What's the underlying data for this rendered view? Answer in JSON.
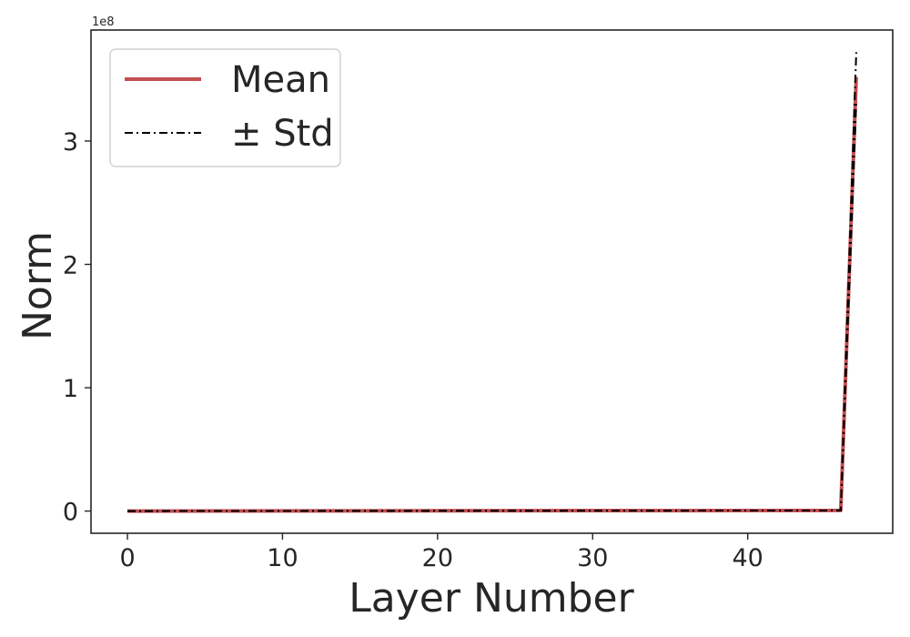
{
  "chart_data": {
    "type": "line",
    "xlabel": "Layer Number",
    "ylabel": "Norm",
    "y_offset_text": "1e8",
    "y_scale": 100000000,
    "xlim": [
      -2.35,
      49.35
    ],
    "ylim": [
      -0.18,
      3.9
    ],
    "xticks": [
      0,
      10,
      20,
      30,
      40
    ],
    "yticks": [
      0,
      1,
      2,
      3
    ],
    "grid": false,
    "legend_position": "upper-left",
    "series": [
      {
        "name": "Mean",
        "style": "solid",
        "color": "#c44e52",
        "x": [
          0,
          46,
          47
        ],
        "y": [
          0,
          0.005,
          3.52
        ]
      },
      {
        "name": "± Std",
        "style": "dashdot",
        "color": "#000000",
        "x": [
          0,
          46,
          47
        ],
        "y": [
          0,
          0.005,
          3.72
        ]
      },
      {
        "name": "",
        "style": "dashdot",
        "color": "#000000",
        "x": [
          0,
          46,
          47
        ],
        "y": [
          0,
          0.005,
          3.32
        ]
      }
    ]
  }
}
